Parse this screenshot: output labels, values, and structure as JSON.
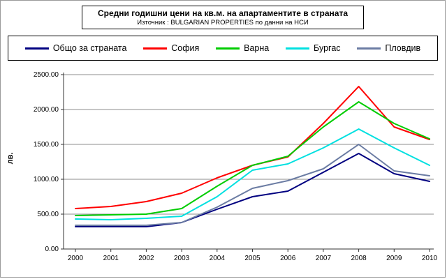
{
  "header": {
    "title": "Средни годишни цени на кв.м. на апартаментите в страната",
    "subtitle": "Източник : BULGARIAN PROPERTIES по данни на НСИ"
  },
  "chart_data": {
    "type": "line",
    "title": "Средни годишни цени на кв.м. на апартаментите в страната",
    "subtitle": "Източник : BULGARIAN PROPERTIES по данни на НСИ",
    "categories": [
      "2000",
      "2001",
      "2002",
      "2003",
      "2004",
      "2005",
      "2006",
      "2007",
      "2008",
      "2009",
      "2010"
    ],
    "series": [
      {
        "name": "Общо за страната",
        "color": "#000080",
        "values": [
          320,
          320,
          320,
          380,
          570,
          750,
          830,
          1100,
          1370,
          1080,
          970
        ]
      },
      {
        "name": "София",
        "color": "#FF0000",
        "values": [
          580,
          610,
          680,
          800,
          1020,
          1200,
          1320,
          1800,
          2330,
          1750,
          1570
        ]
      },
      {
        "name": "Варна",
        "color": "#00CC00",
        "values": [
          480,
          490,
          500,
          580,
          900,
          1200,
          1330,
          1750,
          2110,
          1800,
          1580
        ]
      },
      {
        "name": "Бургас",
        "color": "#00E0E0",
        "values": [
          430,
          420,
          440,
          470,
          750,
          1130,
          1220,
          1450,
          1720,
          1450,
          1200
        ]
      },
      {
        "name": "Пловдив",
        "color": "#6B7CA3",
        "values": [
          340,
          340,
          340,
          380,
          600,
          870,
          980,
          1150,
          1500,
          1120,
          1050
        ]
      }
    ],
    "xlabel": "",
    "ylabel": "лв.",
    "ylim": [
      0,
      2500
    ],
    "ytick_step": 500,
    "ytick_labels": [
      "0.00",
      "500.00",
      "1000.00",
      "1500.00",
      "2000.00",
      "2500.00"
    ],
    "grid": true,
    "legend_position": "top"
  }
}
